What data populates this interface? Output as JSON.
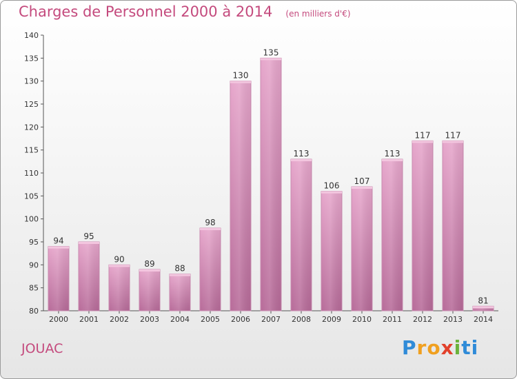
{
  "chart_data": {
    "type": "bar",
    "title": "Charges de Personnel 2000 à 2014",
    "subtitle": "(en milliers d'€)",
    "categories": [
      "2000",
      "2001",
      "2002",
      "2003",
      "2004",
      "2005",
      "2006",
      "2007",
      "2008",
      "2009",
      "2010",
      "2011",
      "2012",
      "2013",
      "2014"
    ],
    "values": [
      94,
      95,
      90,
      89,
      88,
      98,
      130,
      135,
      113,
      106,
      107,
      113,
      117,
      117,
      81
    ],
    "ylim": [
      80,
      140
    ],
    "yticks": [
      80,
      85,
      90,
      95,
      100,
      105,
      110,
      115,
      120,
      125,
      130,
      135,
      140
    ],
    "xlabel": "",
    "ylabel": "",
    "grid": false,
    "legend": "none",
    "bar_color": "#d88ab4",
    "accent_color": "#c44a7d"
  },
  "footer": {
    "place": "JOUAC",
    "logo_letters": [
      "P",
      "r",
      "o",
      "x",
      "i",
      "t",
      "i"
    ]
  }
}
